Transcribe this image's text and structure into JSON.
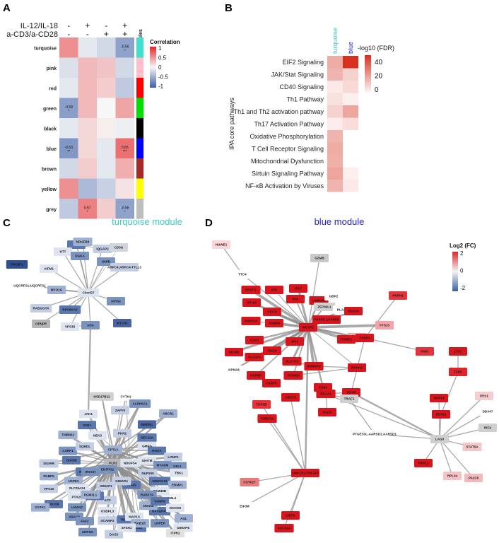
{
  "panels": {
    "A": "A",
    "B": "B",
    "C": "C",
    "D": "D"
  },
  "heatmap_a": {
    "conditions": [
      {
        "label": "IL-12/IL-18",
        "signs": [
          "-",
          "+",
          "-",
          "+"
        ]
      },
      {
        "label": "a-CD3/a-CD28",
        "signs": [
          "-",
          "-",
          "+",
          "+"
        ]
      }
    ],
    "modules_label": "modules",
    "modules": [
      {
        "name": "turquoise",
        "color": "#40E0D0"
      },
      {
        "name": "pink",
        "color": "#FFC0CB"
      },
      {
        "name": "red",
        "color": "#FF0000"
      },
      {
        "name": "green",
        "color": "#00E000"
      },
      {
        "name": "black",
        "color": "#000000"
      },
      {
        "name": "blue",
        "color": "#0000FF"
      },
      {
        "name": "brown",
        "color": "#A52A2A"
      },
      {
        "name": "yellow",
        "color": "#FFFF00"
      },
      {
        "name": "grey",
        "color": "#BEBEBE"
      }
    ],
    "values": [
      [
        0.5,
        -0.1,
        -0.2,
        -0.56
      ],
      [
        -0.15,
        0.3,
        0.25,
        -0.2
      ],
      [
        -0.1,
        0.3,
        0.2,
        -0.3
      ],
      [
        -0.58,
        0.3,
        0.0,
        0.4
      ],
      [
        -0.1,
        0.15,
        0.05,
        -0.05
      ],
      [
        -0.63,
        0.15,
        -0.1,
        0.65
      ],
      [
        -0.2,
        0.2,
        -0.1,
        0.35
      ],
      [
        0.5,
        -0.4,
        -0.25,
        0.1
      ],
      [
        -0.3,
        0.57,
        0.2,
        -0.56
      ]
    ],
    "annotations": [
      {
        "row": 0,
        "col": 3,
        "text": "-0.56",
        "stars": "*"
      },
      {
        "row": 3,
        "col": 0,
        "text": "-0.58",
        "stars": "*"
      },
      {
        "row": 5,
        "col": 0,
        "text": "-0.63",
        "stars": "**"
      },
      {
        "row": 5,
        "col": 3,
        "text": "0.65",
        "stars": "***"
      },
      {
        "row": 8,
        "col": 1,
        "text": "0.57",
        "stars": "*"
      },
      {
        "row": 8,
        "col": 3,
        "text": "-0.56",
        "stars": "*"
      }
    ],
    "legend": {
      "title": "Correlation",
      "ticks": [
        "1",
        "0.5",
        "0",
        "-0.5",
        "-1"
      ]
    }
  },
  "chart_data": {
    "type": "heatmap",
    "ylabel": "IPA core pathways",
    "columns": [
      {
        "name": "turquoise",
        "color": "#40E0D0"
      },
      {
        "name": "blue",
        "color": "#0000FF"
      }
    ],
    "rows": [
      "EIF2 Signaling",
      "JAK/Stat Signaling",
      "CD40 Signaling",
      "Th1 Pathway",
      "Th1 and Th2 activation pathway",
      "Th17 Activation Pathway",
      "Oxidative Phosphorylation",
      "T Cell Receptor Signaling",
      "Mitochondrial Dysfunction",
      "Sirtuin Signaling Pathway",
      "NF-κB Activation by Viruses"
    ],
    "values": [
      [
        22,
        55
      ],
      [
        20,
        12
      ],
      [
        6,
        10
      ],
      [
        8,
        4
      ],
      [
        12,
        24
      ],
      [
        5,
        9
      ],
      [
        20,
        0
      ],
      [
        22,
        0
      ],
      [
        21,
        0
      ],
      [
        24,
        4
      ],
      [
        20,
        6
      ]
    ],
    "legend": {
      "title": "-log10 (FDR)",
      "ticks": [
        "40",
        "20",
        "0"
      ],
      "max": 55
    }
  },
  "network_c": {
    "title": "turquoise module",
    "nodes": [
      "ME3",
      "NDUFB9",
      "HTT",
      "DGKA",
      "IQGAP2",
      "CD3G",
      "PIK3IP1",
      "AIFM1",
      "G6PD",
      "ARPC4;ARPC4-TTLL3",
      "UQCRFS1;UQCRFS1",
      "MYO1G",
      "C3orf27",
      "IARS2",
      "RABGGTA",
      "RPS6KA5",
      "CENPE",
      "VPS35",
      "ADA",
      "MTCH1",
      "HSD17B11",
      "CYTH1",
      "JAK1",
      "ALDH5A1",
      "ZAP70",
      "SSR1",
      "ABCB1",
      "NEK3",
      "NMDN1",
      "PKN1",
      "SEC22A",
      "TMBIM2",
      "GMFG",
      "CSRP1",
      "SQRDL",
      "RHOA",
      "CPT1A",
      "GHITM",
      "MYADM",
      "LONP1",
      "DDX58",
      "PLP2",
      "NDUFS4",
      "UFL1",
      "SIGIRR",
      "RAB2B",
      "USP9X",
      "TBK1",
      "ENTPD2",
      "NUP205",
      "NDUFA12",
      "PKBP5",
      "SLC25A24",
      "IRKCH",
      "GIMAP1",
      "ATADI",
      "ERMP1",
      "PTK2B",
      "LMAN2",
      "VPS16",
      "DDX58",
      "EML4",
      "FAM49B",
      "VDAC3",
      "SCAMP2",
      "TMED10",
      "GSTK1",
      "OSBPL3",
      "ADPGK",
      "DAS3",
      "SFXN3",
      "AGL",
      "GIMAP8",
      "LNPEP",
      "ITPR2",
      "RASGRP2",
      "DDX58",
      "MAP1S",
      "RAB27A",
      "AC3",
      "IMMT",
      "RAB1B",
      "SFXN1",
      "FAF2",
      "GIMAP4",
      "VAMP8",
      "PGM2L1",
      "DOCK8"
    ]
  },
  "network_d": {
    "title": "blue module",
    "legend": {
      "title": "Log2 (FC)",
      "ticks": [
        "2",
        "0",
        "-2"
      ]
    },
    "nodes": [
      "HUWE1",
      "TTC4",
      "GZMB",
      "IRF7",
      "EPSTI1",
      "IFI6",
      "IFIH",
      "LAMGN1",
      "SP100",
      "STAT4",
      "GBP2",
      "ZFP36L1",
      "HLA-B",
      "HSPH1",
      "SAMD9",
      "PARP14",
      "PARPC1;PARP9",
      "DDX3X",
      "EIF4G1",
      "FTSJ3",
      "MCTP2",
      "MX1",
      "C2CD",
      "ISG15",
      "PSME2",
      "CSDE1",
      "PIM1",
      "SLC2A3",
      "DDX60",
      "LTV1",
      "TFRC",
      "HSPBP",
      "KPNA6",
      "SLC7A5",
      "HNRNPU",
      "RPNH2",
      "ATXN10",
      "CD44",
      "DDX5",
      "NOP14",
      "DDX21",
      "FABP5",
      "ABCF2",
      "EIF4A1",
      "TRAF1",
      "PES1",
      "DDX47",
      "IRF4",
      "TOP2B",
      "TNRC6A",
      "ISG20",
      "LAG3",
      "PTGES3L-AARSD1;AARSD1",
      "RRP12",
      "STAT5A",
      "RPL34",
      "PA1C6",
      "CMKLR1;TNFSF5",
      "CSTF2T",
      "EIF3M",
      "GBP5",
      "SOLD4A"
    ]
  }
}
